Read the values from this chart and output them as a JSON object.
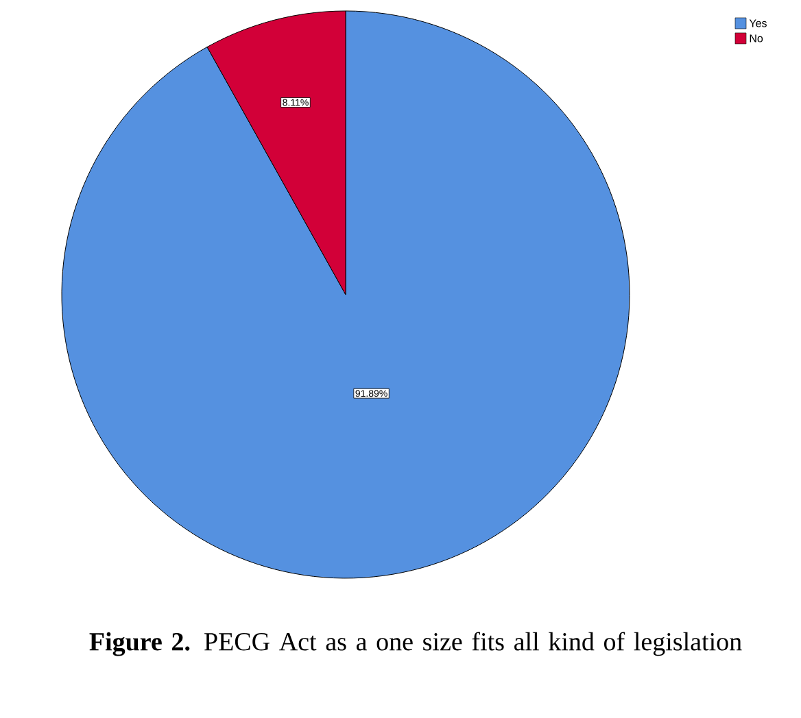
{
  "chart_data": {
    "type": "pie",
    "title": "**Figure 2.** PECG Act as a one size fits all kind of legislation",
    "categories": [
      "Yes",
      "No"
    ],
    "values": [
      91.89,
      8.11
    ],
    "colors": [
      "#5591e0",
      "#d20038"
    ],
    "value_labels": [
      "91.89%",
      "8.11%"
    ],
    "legend": "top right"
  }
}
